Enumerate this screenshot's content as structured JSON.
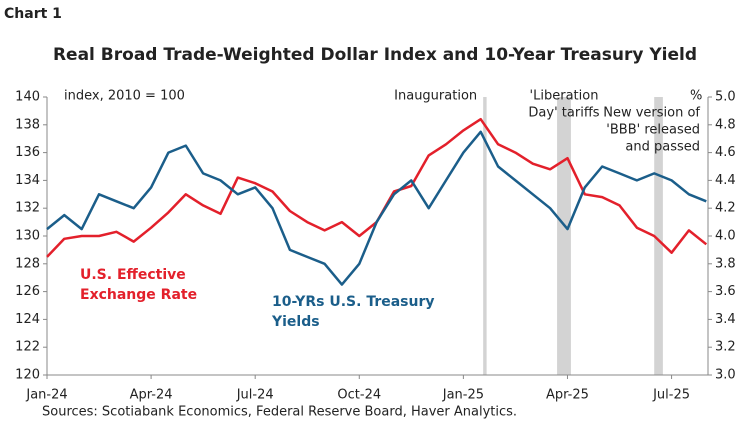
{
  "chart_data": {
    "type": "line",
    "kicker": "Chart 1",
    "title": "Real Broad Trade-Weighted Dollar Index and 10-Year Treasury Yield",
    "ylabel": "index, 2010 = 100",
    "y2label": "%",
    "source": "Sources: Scotiabank Economics, Federal Reserve Board, Haver Analytics.",
    "x": [
      0,
      0.5,
      1,
      1.5,
      2,
      2.5,
      3,
      3.5,
      4,
      4.5,
      5,
      5.5,
      6,
      6.5,
      7,
      7.5,
      8,
      8.5,
      9,
      9.5,
      10,
      10.5,
      11,
      11.5,
      12,
      12.5,
      13,
      13.5,
      14,
      14.5,
      15,
      15.5,
      16,
      16.5,
      17,
      17.5,
      18,
      18.5,
      19
    ],
    "xlim": [
      0,
      19.05
    ],
    "xticks": [
      {
        "value": 0,
        "label": "Jan-24"
      },
      {
        "value": 3,
        "label": "Apr-24"
      },
      {
        "value": 6,
        "label": "Jul-24"
      },
      {
        "value": 9,
        "label": "Oct-24"
      },
      {
        "value": 12,
        "label": "Jan-25"
      },
      {
        "value": 15,
        "label": "Apr-25"
      },
      {
        "value": 18,
        "label": "Jul-25"
      }
    ],
    "ylim": [
      120,
      140
    ],
    "yticks": [
      120,
      122,
      124,
      126,
      128,
      130,
      132,
      134,
      136,
      138,
      140
    ],
    "y2lim": [
      3,
      5
    ],
    "y2ticks": [
      {
        "value": 3,
        "label": "3.0"
      },
      3.2,
      3.4,
      3.6,
      3.8,
      {
        "value": 4,
        "label": "4.0"
      },
      4.2,
      4.4,
      4.6,
      4.8,
      {
        "value": 5,
        "label": "5.0"
      }
    ],
    "series": [
      {
        "name": "U.S. Effective Exchange Rate",
        "color": "#e3202b",
        "values": [
          128.5,
          129.8,
          130.0,
          130.0,
          130.3,
          129.6,
          130.6,
          131.7,
          133.0,
          132.2,
          131.6,
          134.2,
          133.8,
          133.2,
          131.8,
          131.0,
          130.4,
          131.0,
          130.0,
          131.0,
          133.2,
          133.6,
          135.8,
          136.6,
          137.6,
          138.4,
          136.6,
          136.0,
          135.2,
          134.8,
          135.6,
          133.0,
          132.8,
          132.2,
          130.6,
          130.0,
          128.8,
          130.4,
          129.4
        ]
      },
      {
        "name": "10-YRs U.S. Treasury Yields",
        "color": "#1b5e8a",
        "axis": "y2",
        "values": [
          4.05,
          4.15,
          4.05,
          4.3,
          4.25,
          4.2,
          4.35,
          4.6,
          4.65,
          4.45,
          4.4,
          4.3,
          4.35,
          4.2,
          3.9,
          3.85,
          3.8,
          3.65,
          3.8,
          4.1,
          4.3,
          4.4,
          4.2,
          4.4,
          4.6,
          4.75,
          4.5,
          4.4,
          4.3,
          4.2,
          4.05,
          4.35,
          4.5,
          4.45,
          4.4,
          4.45,
          4.4,
          4.3,
          4.25
        ]
      }
    ],
    "bands": [
      {
        "label": [
          "Inauguration"
        ],
        "x": [
          12.57,
          12.67
        ]
      },
      {
        "label": [
          "'Liberation",
          "Day' tariffs"
        ],
        "x": [
          14.7,
          15.1
        ]
      },
      {
        "label": [
          "New version of",
          "'BBB' released",
          "and passed"
        ],
        "x": [
          17.5,
          17.75
        ]
      }
    ]
  }
}
